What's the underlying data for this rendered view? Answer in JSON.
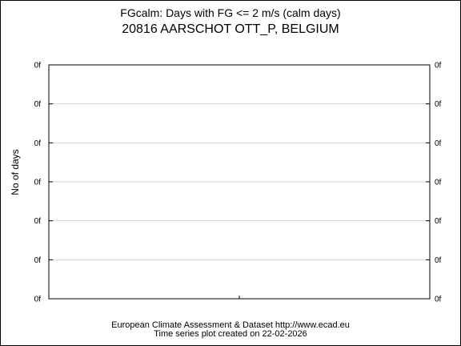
{
  "chart_data": {
    "type": "line",
    "title": "FGcalm: Days with FG <= 2 m/s (calm days)",
    "subtitle": "20816 AARSCHOT OTT_P, BELGIUM",
    "ylabel": "No of days",
    "xlabel": "",
    "y_tick_labels": [
      "0f",
      "0f",
      "0f",
      "0f",
      "0f",
      "0f",
      "0f"
    ],
    "x_tick_labels": [],
    "series": [],
    "grid": true,
    "axis_colors": {
      "frame": "#000000",
      "grid": "#d3d3d3"
    }
  },
  "footer": {
    "line1": "European Climate Assessment & Dataset  http://www.ecad.eu",
    "line2": "Time series plot created on 22-02-2026"
  }
}
